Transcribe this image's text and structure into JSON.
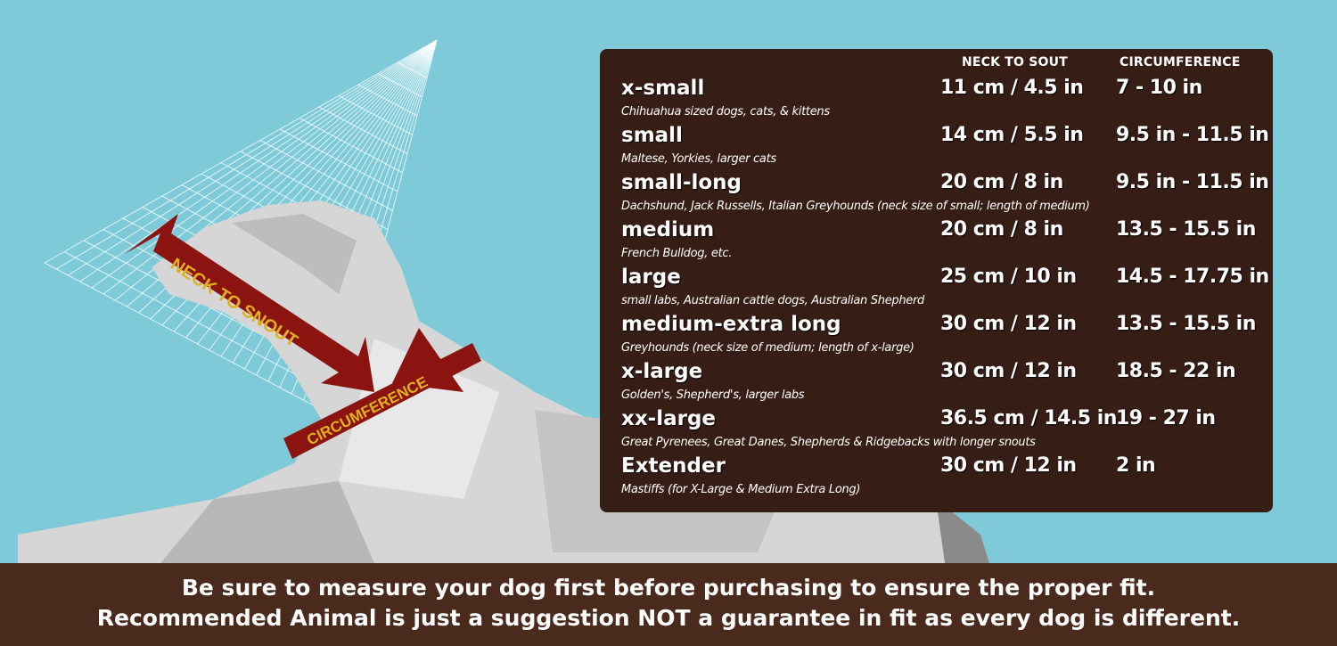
{
  "illustration": {
    "arrow_label_length": "NECK TO SNOUT",
    "arrow_label_circumference": "CIRCUMFERENCE",
    "colors": {
      "background": "#7ecad9",
      "arrow": "#8b1410",
      "arrow_text": "#e0b020",
      "dog": "#d9d9d9"
    }
  },
  "table": {
    "headers": {
      "neck": "NECK TO SOUT",
      "circumference": "CIRCUMFERENCE"
    },
    "rows": [
      {
        "name": "x-small",
        "neck": "11 cm / 4.5 in",
        "circumference": "7 - 10 in",
        "desc": "Chihuahua sized dogs, cats, & kittens"
      },
      {
        "name": "small",
        "neck": "14 cm / 5.5 in",
        "circumference": "9.5 in - 11.5 in",
        "desc": "Maltese, Yorkies, larger cats"
      },
      {
        "name": "small-long",
        "neck": "20 cm / 8 in",
        "circumference": "9.5 in - 11.5 in",
        "desc": "Dachshund, Jack Russells, Italian Greyhounds  (neck size of small; length of medium)"
      },
      {
        "name": "medium",
        "neck": "20 cm / 8 in",
        "circumference": "13.5 - 15.5 in",
        "desc": "French Bulldog, etc."
      },
      {
        "name": "large",
        "neck": "25 cm / 10 in",
        "circumference": "14.5 - 17.75 in",
        "desc": "small labs, Australian cattle dogs, Australian Shepherd"
      },
      {
        "name": "medium-extra long",
        "neck": "30 cm / 12 in",
        "circumference": "13.5 - 15.5 in",
        "desc": "Greyhounds  (neck size of medium; length of x-large)"
      },
      {
        "name": "x-large",
        "neck": "30 cm / 12 in",
        "circumference": "18.5 - 22 in",
        "desc": "Golden's, Shepherd's, larger labs"
      },
      {
        "name": "xx-large",
        "neck": "36.5 cm / 14.5 in",
        "circumference": "19 - 27 in",
        "desc": "Great Pyrenees, Great Danes, Shepherds & Ridgebacks with longer snouts"
      },
      {
        "name": "Extender",
        "neck": "30 cm / 12 in",
        "circumference": "2 in",
        "desc": "Mastiffs (for X-Large & Medium Extra Long)"
      }
    ],
    "colors": {
      "panel": "#361d15"
    }
  },
  "footer": {
    "line1": "Be sure to measure your dog first before purchasing to ensure the proper fit.",
    "line2": "Recommended Animal is just a suggestion NOT a guarantee in fit as every dog is different.",
    "color": "#4a2a1d"
  }
}
